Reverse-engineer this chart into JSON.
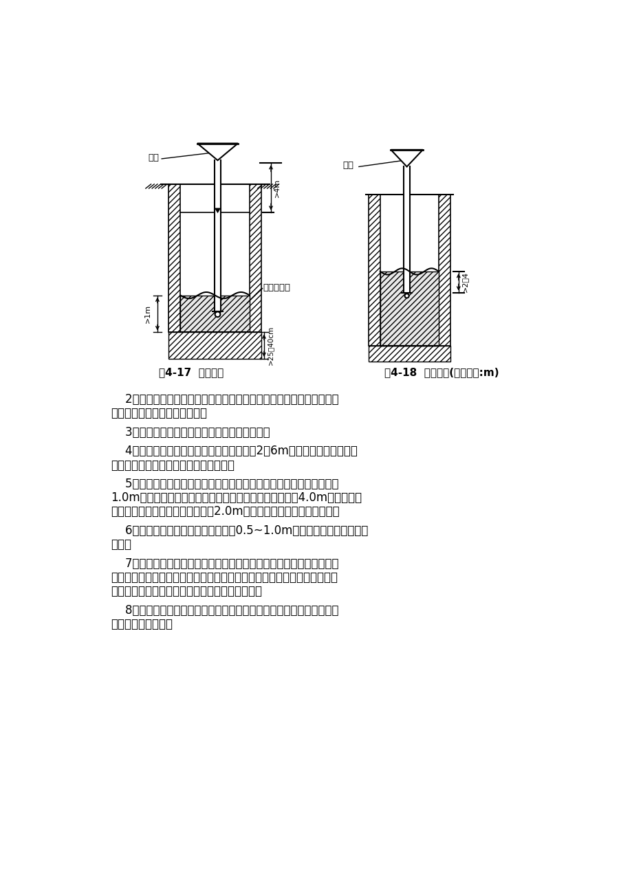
{
  "bg_color": "#ffffff",
  "text_color": "#000000",
  "fig_width": 9.2,
  "fig_height": 13.02,
  "caption_left": "图4-17  导管位置",
  "caption_right": "图4-18  导管位置(尺寸单位:m)",
  "paragraphs": [
    "    2、运到灌注现场的混凝土，应检查其均匀性、坍落度等性能指标，如\n不符合要求，应进行二次拌合。",
    "    3、首批混凝土拌合物下落后，即应连续灌注。",
    "    4、灌注过程中，导管的埋置深度宜控制在2～6m，并应经常测探井孔内\n混凝土面的位置，及时地调整导管埋深。",
    "    5、灌注混凝土时，应防止钢筋骨架上浮。在混凝土面距钢筋骨架底部\n1.0m左右时，应降低灌注速度。当混凝土面升至骨架底口4.0m以上时，提\n升导管，使导管底口高于骨架底部2.0m以上，即可恢复正常速度灌注。",
    "    6、灌注的桩顶标高应高出设计标高0.5~1.0m，多余部分在底板浇筑前\n凿除。",
    "    7、使用全护筒灌注水下混凝土时，护筒内的混凝土灌注高度不仅要考\n虑导管及护筒将提升的高度，还要考虑因上拔护筒引起的混凝土面的降低，\n以保证导管的埋设深度和护筒底面低于混凝土面。",
    "    8、灌注过程中应将孔中排出的水或泥浆引流到不会污染环境的适当地\n点，不得随意排放。"
  ]
}
